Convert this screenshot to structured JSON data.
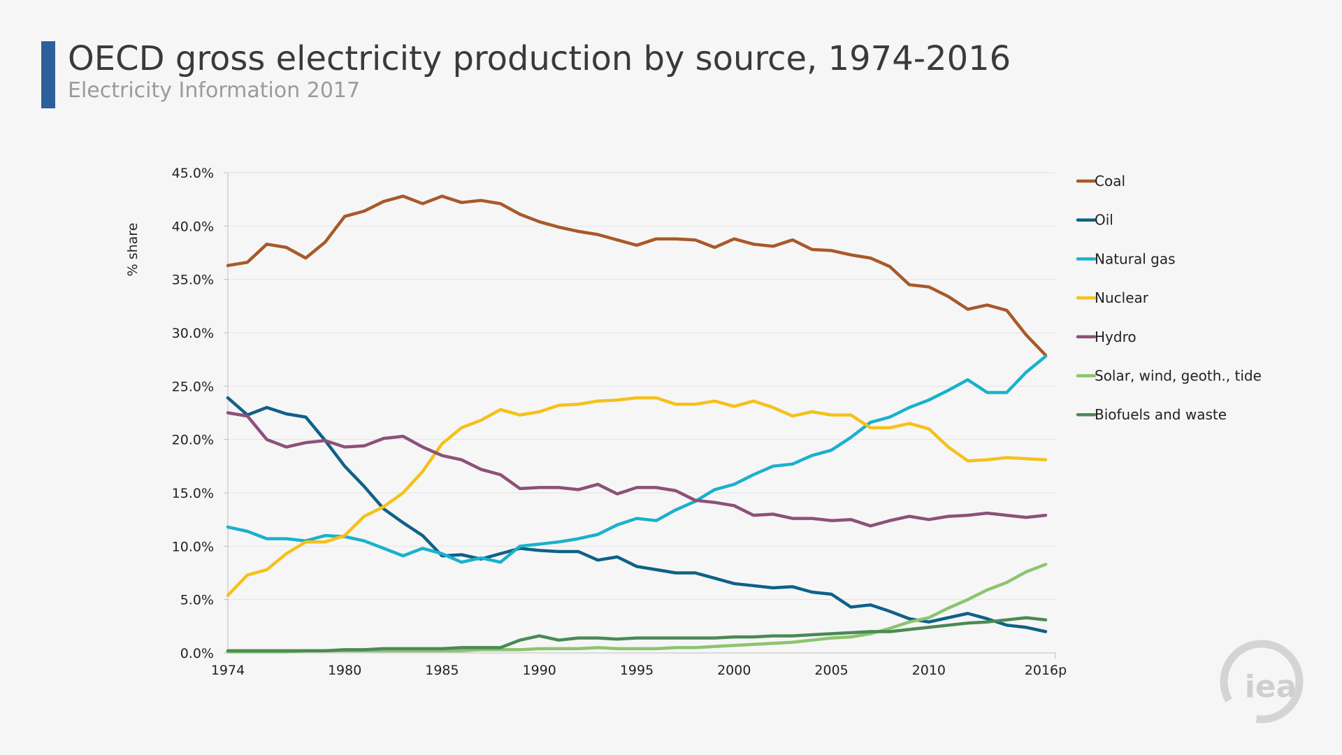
{
  "header": {
    "title": "OECD gross electricity production by source, 1974-2016",
    "subtitle": "Electricity Information 2017"
  },
  "logo": {
    "text": "iea",
    "icon": "iea-logo-icon"
  },
  "chart_data": {
    "type": "line",
    "ylabel": "% share",
    "xlabel": "",
    "ylim": [
      0,
      45
    ],
    "xlim": [
      1974,
      2016
    ],
    "grid": true,
    "legend_position": "right",
    "y_ticks": [
      "0.0%",
      "5.0%",
      "10.0%",
      "15.0%",
      "20.0%",
      "25.0%",
      "30.0%",
      "35.0%",
      "40.0%",
      "45.0%"
    ],
    "x_tick_values": [
      1974,
      1980,
      1985,
      1990,
      1995,
      2000,
      2005,
      2010,
      2016
    ],
    "x_tick_labels": [
      "1974",
      "1980",
      "1985",
      "1990",
      "1995",
      "2000",
      "2005",
      "2010",
      "2016p"
    ],
    "x": [
      1974,
      1975,
      1976,
      1977,
      1978,
      1979,
      1980,
      1981,
      1982,
      1983,
      1984,
      1985,
      1986,
      1987,
      1988,
      1989,
      1990,
      1991,
      1992,
      1993,
      1994,
      1995,
      1996,
      1997,
      1998,
      1999,
      2000,
      2001,
      2002,
      2003,
      2004,
      2005,
      2006,
      2007,
      2008,
      2009,
      2010,
      2011,
      2012,
      2013,
      2014,
      2015,
      2016
    ],
    "series": [
      {
        "name": "Coal",
        "color": "#a8592a",
        "values": [
          36.3,
          36.6,
          38.3,
          38.0,
          37.0,
          38.5,
          40.9,
          41.4,
          42.3,
          42.8,
          42.1,
          42.8,
          42.2,
          42.4,
          42.1,
          41.1,
          40.4,
          39.9,
          39.5,
          39.2,
          38.7,
          38.2,
          38.8,
          38.8,
          38.7,
          38.0,
          38.8,
          38.3,
          38.1,
          38.7,
          37.8,
          37.7,
          37.3,
          37.0,
          36.2,
          34.5,
          34.3,
          33.4,
          32.2,
          32.6,
          32.1,
          29.8,
          27.9
        ]
      },
      {
        "name": "Oil",
        "color": "#0f6187",
        "values": [
          23.9,
          22.3,
          23.0,
          22.4,
          22.1,
          19.9,
          17.5,
          15.6,
          13.5,
          12.2,
          11.0,
          9.1,
          9.2,
          8.8,
          9.3,
          9.8,
          9.6,
          9.5,
          9.5,
          8.7,
          9.0,
          8.1,
          7.8,
          7.5,
          7.5,
          7.0,
          6.5,
          6.3,
          6.1,
          6.2,
          5.7,
          5.5,
          4.3,
          4.5,
          3.9,
          3.2,
          2.9,
          3.3,
          3.7,
          3.2,
          2.6,
          2.4,
          2.0
        ]
      },
      {
        "name": "Natural gas",
        "color": "#1ab1cc",
        "values": [
          11.8,
          11.4,
          10.7,
          10.7,
          10.5,
          11.0,
          10.9,
          10.5,
          9.8,
          9.1,
          9.8,
          9.3,
          8.5,
          8.9,
          8.5,
          10.0,
          10.2,
          10.4,
          10.7,
          11.1,
          12.0,
          12.6,
          12.4,
          13.4,
          14.2,
          15.3,
          15.8,
          16.7,
          17.5,
          17.7,
          18.5,
          19.0,
          20.2,
          21.6,
          22.1,
          23.0,
          23.7,
          24.6,
          25.6,
          24.4,
          24.4,
          26.3,
          27.8
        ]
      },
      {
        "name": "Nuclear",
        "color": "#f5c11a",
        "values": [
          5.4,
          7.3,
          7.8,
          9.3,
          10.4,
          10.4,
          11.0,
          12.8,
          13.7,
          15.0,
          17.0,
          19.6,
          21.1,
          21.8,
          22.8,
          22.3,
          22.6,
          23.2,
          23.3,
          23.6,
          23.7,
          23.9,
          23.9,
          23.3,
          23.3,
          23.6,
          23.1,
          23.6,
          23.0,
          22.2,
          22.6,
          22.3,
          22.3,
          21.1,
          21.1,
          21.5,
          21.0,
          19.3,
          18.0,
          18.1,
          18.3,
          18.2,
          18.1
        ]
      },
      {
        "name": "Hydro",
        "color": "#8d5079",
        "values": [
          22.5,
          22.2,
          20.0,
          19.3,
          19.7,
          19.9,
          19.3,
          19.4,
          20.1,
          20.3,
          19.3,
          18.5,
          18.1,
          17.2,
          16.7,
          15.4,
          15.5,
          15.5,
          15.3,
          15.8,
          14.9,
          15.5,
          15.5,
          15.2,
          14.3,
          14.1,
          13.8,
          12.9,
          13.0,
          12.6,
          12.6,
          12.4,
          12.5,
          11.9,
          12.4,
          12.8,
          12.5,
          12.8,
          12.9,
          13.1,
          12.9,
          12.7,
          12.9
        ]
      },
      {
        "name": "Solar, wind, geoth., tide",
        "color": "#8dc46e",
        "values": [
          0.1,
          0.1,
          0.1,
          0.1,
          0.2,
          0.2,
          0.2,
          0.2,
          0.2,
          0.2,
          0.2,
          0.2,
          0.2,
          0.3,
          0.3,
          0.3,
          0.4,
          0.4,
          0.4,
          0.5,
          0.4,
          0.4,
          0.4,
          0.5,
          0.5,
          0.6,
          0.7,
          0.8,
          0.9,
          1.0,
          1.2,
          1.4,
          1.5,
          1.8,
          2.3,
          2.9,
          3.3,
          4.2,
          5.0,
          5.9,
          6.6,
          7.6,
          8.3
        ]
      },
      {
        "name": "Biofuels and waste",
        "color": "#4a8a55",
        "values": [
          0.2,
          0.2,
          0.2,
          0.2,
          0.2,
          0.2,
          0.3,
          0.3,
          0.4,
          0.4,
          0.4,
          0.4,
          0.5,
          0.5,
          0.5,
          1.2,
          1.6,
          1.2,
          1.4,
          1.4,
          1.3,
          1.4,
          1.4,
          1.4,
          1.4,
          1.4,
          1.5,
          1.5,
          1.6,
          1.6,
          1.7,
          1.8,
          1.9,
          2.0,
          2.0,
          2.2,
          2.4,
          2.6,
          2.8,
          2.9,
          3.1,
          3.3,
          3.1
        ]
      }
    ]
  }
}
